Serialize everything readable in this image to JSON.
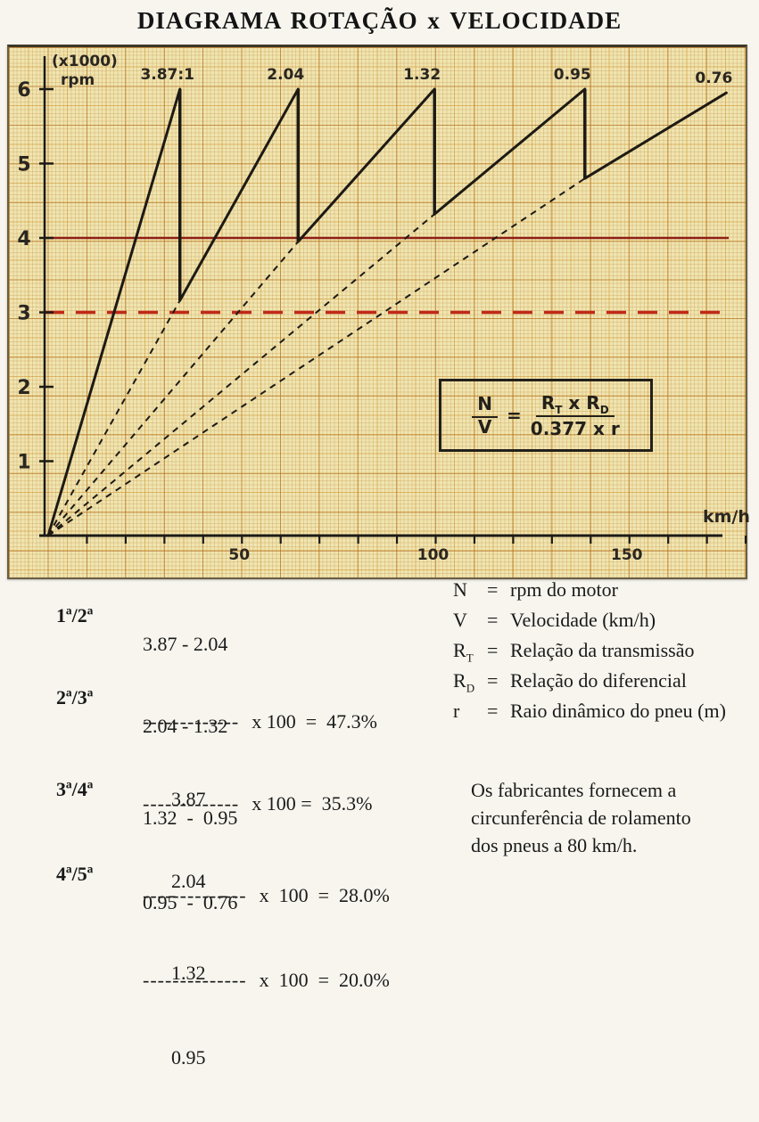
{
  "title": "DIAGRAMA ROTAÇÃO x VELOCIDADE",
  "chart_data": {
    "type": "line",
    "title": "DIAGRAMA ROTAÇÃO x VELOCIDADE",
    "ylabel_line1": "(x1000)",
    "ylabel_line2": "rpm",
    "xlabel": "km/h",
    "x_ticks": [
      50,
      100,
      150
    ],
    "x_minor_tick_step": 10,
    "x_max": 180,
    "y_ticks": [
      1,
      2,
      3,
      4,
      5,
      6
    ],
    "xlim": [
      0,
      185
    ],
    "ylim": [
      0,
      6500
    ],
    "max_rpm": 6000,
    "grid": true,
    "colors": {
      "ink": "#1d1a14",
      "ref_solid": "#8e1f14",
      "ref_dashed": "#c02818",
      "paper": "#f0e5b0"
    },
    "gears": [
      {
        "label": "3.87:1",
        "ratio": 3.87,
        "start": {
          "v": 0,
          "rpm": 0
        },
        "end": {
          "v": 34,
          "rpm": 6000
        }
      },
      {
        "label": "2.04",
        "ratio": 2.04,
        "start": {
          "v": 34,
          "rpm": 3160
        },
        "end": {
          "v": 64.5,
          "rpm": 6000
        }
      },
      {
        "label": "1.32",
        "ratio": 1.32,
        "start": {
          "v": 64.5,
          "rpm": 3950
        },
        "end": {
          "v": 99.7,
          "rpm": 6000
        }
      },
      {
        "label": "0.95",
        "ratio": 0.95,
        "start": {
          "v": 99.7,
          "rpm": 4320
        },
        "end": {
          "v": 138.5,
          "rpm": 6000
        }
      },
      {
        "label": "0.76",
        "ratio": 0.76,
        "start": {
          "v": 138.5,
          "rpm": 4800
        },
        "end": {
          "v": 175,
          "rpm": 5950
        }
      }
    ],
    "ref_lines": [
      {
        "rpm": 4000,
        "style": "solid",
        "color": "#8e1f14"
      },
      {
        "rpm": 3000,
        "style": "dashed",
        "color": "#c02818"
      }
    ]
  },
  "formula": {
    "lhs_num": "N",
    "lhs_den": "V",
    "eq": "=",
    "r1": "R",
    "r1_sub": "T",
    "mult": "x",
    "r2": "R",
    "r2_sub": "D",
    "rhs_den": "0.377 x r"
  },
  "steps": [
    {
      "label": "1ª/2ª",
      "numerator": "3.87 - 2.04",
      "bar": "-------------",
      "expr": "x 100  =  47.3%",
      "denominator": "3.87"
    },
    {
      "label": "2ª/3ª",
      "numerator": "2.04 - 1.32",
      "bar": "-------------",
      "expr": "x 100 =  35.3%",
      "denominator": "2.04"
    },
    {
      "label": "3ª/4ª",
      "numerator": "1.32  -  0.95",
      "bar": "--------------",
      "expr": "x  100  =  28.0%",
      "denominator": "1.32"
    },
    {
      "label": "4ª/5ª",
      "numerator": "0.95  -  0.76",
      "bar": "--------------",
      "expr": "x  100  =  20.0%",
      "denominator": "0.95"
    }
  ],
  "legend": {
    "rows": [
      {
        "sym": "N",
        "sub": "",
        "eq": "=",
        "desc": "rpm do motor"
      },
      {
        "sym": "V",
        "sub": "",
        "eq": "=",
        "desc": "Velocidade (km/h)"
      },
      {
        "sym": "R",
        "sub": "T",
        "eq": "=",
        "desc": "Relação da transmissão"
      },
      {
        "sym": "R",
        "sub": "D",
        "eq": "=",
        "desc": "Relação do diferencial"
      },
      {
        "sym": "r",
        "sub": "",
        "eq": "=",
        "desc": "Raio dinâmico do pneu (m)"
      }
    ]
  },
  "note": {
    "line1": "Os fabricantes fornecem a",
    "line2": "circunferência de rolamento",
    "line3": "dos pneus a 80 km/h."
  }
}
